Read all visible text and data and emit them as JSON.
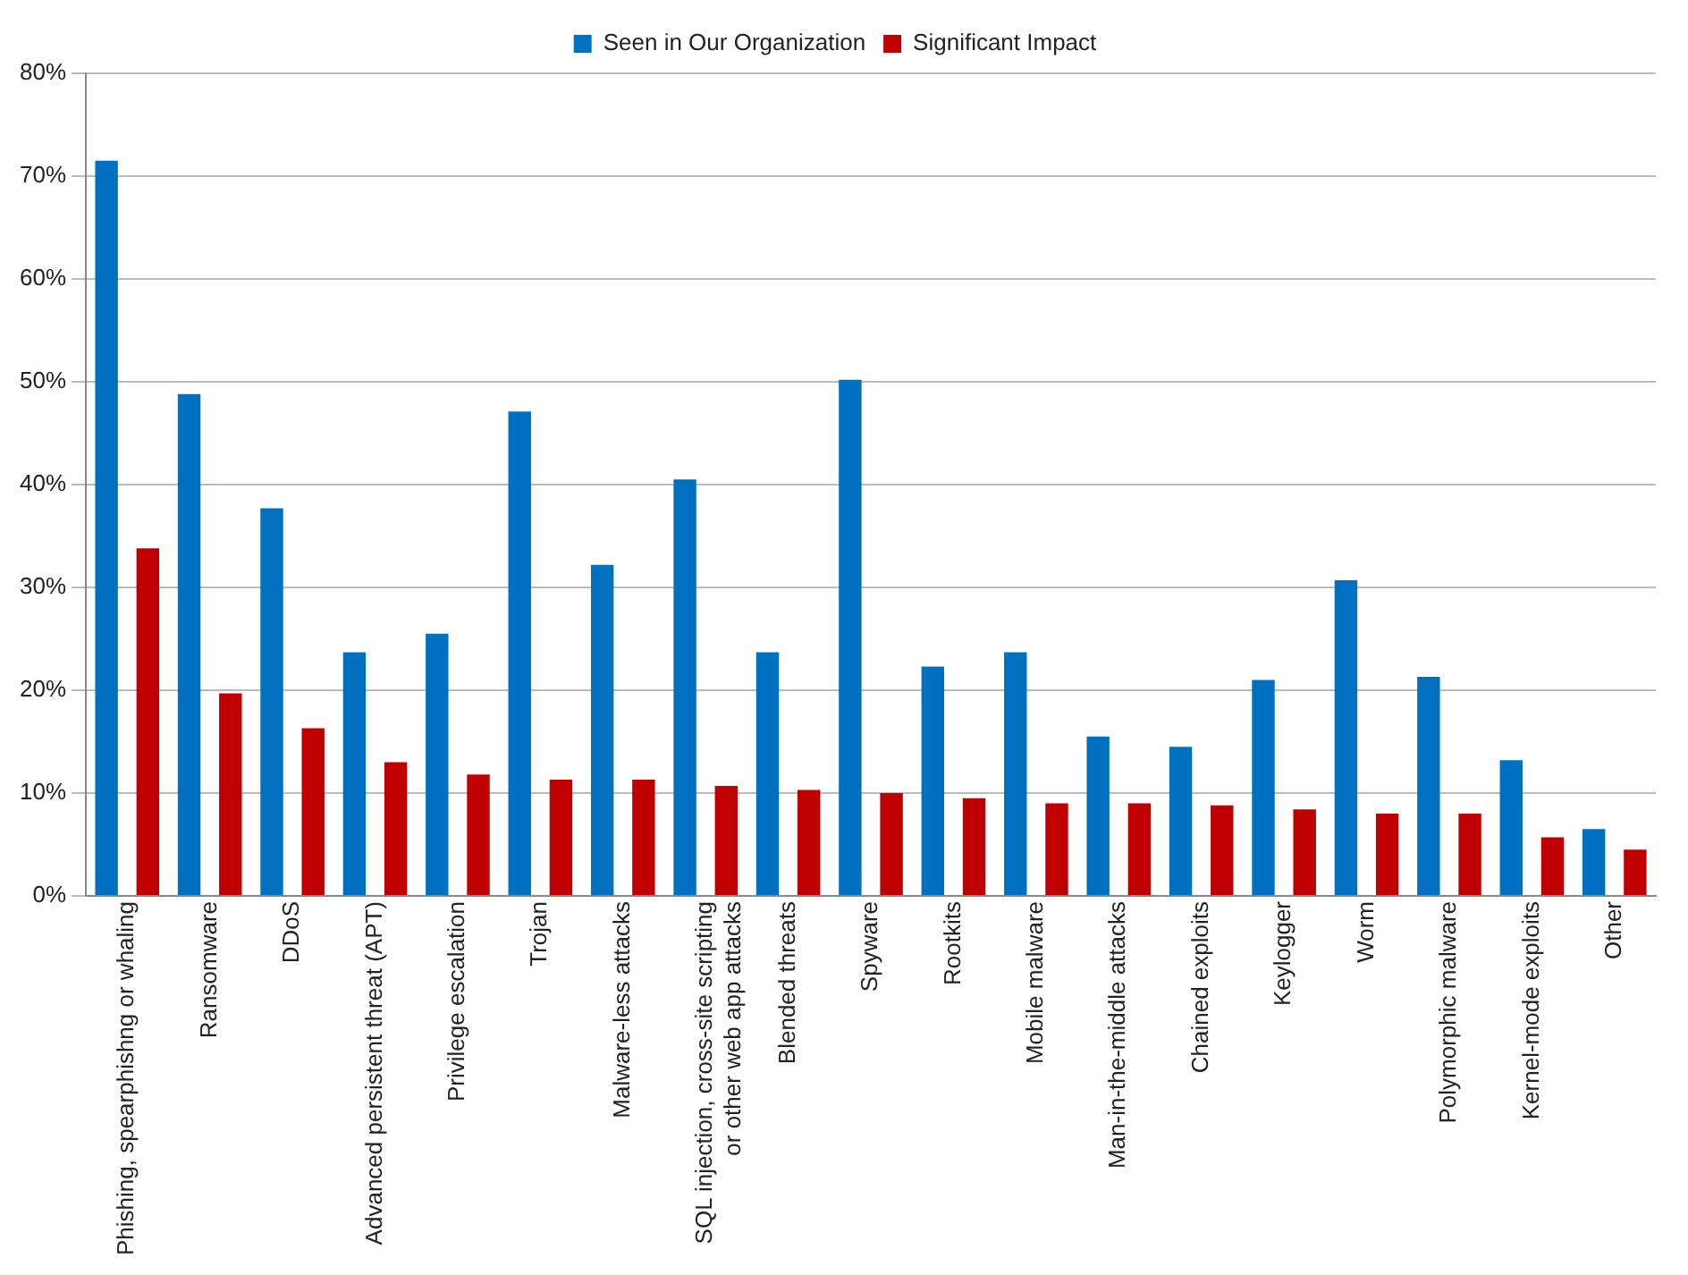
{
  "chart_data": {
    "type": "bar",
    "categories": [
      "Phishing, spearphishng or whaling",
      "Ransomware",
      "DDoS",
      "Advanced persistent threat (APT)",
      "Privilege escalation",
      "Trojan",
      "Malware-less attacks",
      "SQL injection, cross-site scripting or other web app attacks",
      "Blended threats",
      "Spyware",
      "Rootkits",
      "Mobile malware",
      "Man-in-the-middle attacks",
      "Chained exploits",
      "Keylogger",
      "Worm",
      "Polymorphic malware",
      "Kernel-mode exploits",
      "Other"
    ],
    "series": [
      {
        "name": "Seen in Our Organization",
        "color": "#0070c0",
        "values": [
          71.5,
          48.8,
          37.7,
          23.7,
          25.5,
          47.1,
          32.2,
          40.5,
          23.7,
          50.2,
          22.3,
          23.7,
          15.5,
          14.5,
          21.0,
          30.7,
          21.3,
          13.2,
          6.5
        ]
      },
      {
        "name": "Significant Impact",
        "color": "#c00000",
        "values": [
          33.8,
          19.7,
          16.3,
          13.0,
          11.8,
          11.3,
          11.3,
          10.7,
          10.3,
          10.0,
          9.5,
          9.0,
          9.0,
          8.8,
          8.4,
          8.0,
          8.0,
          5.7,
          4.5
        ]
      }
    ],
    "ylim": [
      0,
      80
    ],
    "yticks": [
      {
        "value": 0,
        "label": "0%"
      },
      {
        "value": 10,
        "label": "10%"
      },
      {
        "value": 20,
        "label": "20%"
      },
      {
        "value": 30,
        "label": "30%"
      },
      {
        "value": 40,
        "label": "40%"
      },
      {
        "value": 50,
        "label": "50%"
      },
      {
        "value": 60,
        "label": "60%"
      },
      {
        "value": 70,
        "label": "70%"
      },
      {
        "value": 80,
        "label": "80%"
      }
    ],
    "grid": "y",
    "legend": "top"
  }
}
